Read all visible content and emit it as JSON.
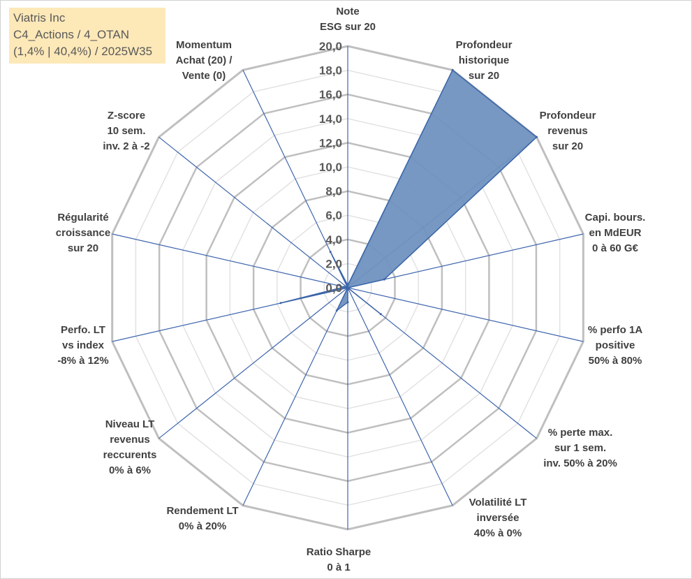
{
  "info_box": {
    "line1": "Viatris Inc",
    "line2": "C4_Actions / 4_OTAN",
    "line3": "(1,4% | 40,4%) / 2025W35"
  },
  "colors": {
    "fill": "#6f92bf",
    "stroke": "#3a64a8",
    "spoke": "#3f66ad",
    "grid_outer": "#bfbfbf",
    "grid_inner": "#e2e2e2",
    "info_box_bg": "#fde8b8"
  },
  "chart_data": {
    "type": "radar",
    "title": "",
    "grid": true,
    "rmin": 0,
    "rmax": 20,
    "tick_step": 2,
    "tick_labels": [
      "0,0",
      "2,0",
      "4,0",
      "6,0",
      "8,0",
      "10,0",
      "12,0",
      "14,0",
      "16,0",
      "18,0",
      "20,0"
    ],
    "axes": [
      {
        "label": [
          "Note",
          "ESG sur 20"
        ],
        "value": 0.2
      },
      {
        "label": [
          "Profondeur",
          "historique",
          "sur 20"
        ],
        "value": 20
      },
      {
        "label": [
          "Profondeur",
          "revenus",
          "sur 20"
        ],
        "value": 20
      },
      {
        "label": [
          "Capi. bours.",
          "en MdEUR",
          "0 à 60 G€"
        ],
        "value": 3.1
      },
      {
        "label": [
          "% perfo 1A",
          "positive",
          "50% à 80%"
        ],
        "value": 0
      },
      {
        "label": [
          "% perte max.",
          "sur 1 sem.",
          "inv. 50% à 20%"
        ],
        "value": 3.5
      },
      {
        "label": [
          "Volatilité LT",
          "inversée",
          "40% à 0%"
        ],
        "value": 0
      },
      {
        "label": [
          "Ratio Sharpe",
          "0 à 1"
        ],
        "value": 1.2
      },
      {
        "label": [
          "Rendement LT",
          "0% à 20%"
        ],
        "value": 2.1
      },
      {
        "label": [
          "Niveau LT",
          "revenus",
          "reccurents",
          "0% à 6%"
        ],
        "value": 0
      },
      {
        "label": [
          "Perfo. LT",
          "vs index",
          "-8% à 12%"
        ],
        "value": 5.7
      },
      {
        "label": [
          "Régularité",
          "croissance",
          "sur 20"
        ],
        "value": 0.3
      },
      {
        "label": [
          "Z-score",
          "10 sem.",
          "inv. 2 à -2"
        ],
        "value": 0
      },
      {
        "label": [
          "Momentum",
          "Achat (20) /",
          "Vente (0)"
        ],
        "value": 3.3
      }
    ]
  }
}
